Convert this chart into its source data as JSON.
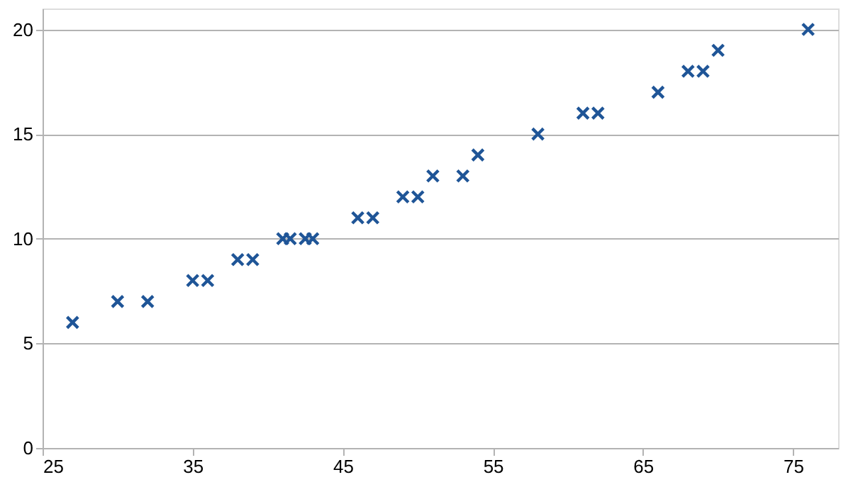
{
  "chart_data": {
    "type": "scatter",
    "marker": "cross",
    "grid": "y",
    "x": [
      27,
      30,
      32,
      35,
      36,
      38,
      39,
      41,
      41.5,
      42.5,
      43,
      46,
      47,
      49,
      50,
      51,
      53,
      54,
      58,
      61,
      62,
      66,
      68,
      69,
      70,
      76
    ],
    "series": [
      {
        "color": "#1f5597",
        "values": [
          6,
          7,
          7,
          8,
          8,
          9,
          9,
          10,
          10,
          10,
          10,
          11,
          11,
          12,
          12,
          13,
          13,
          14,
          15,
          16,
          16,
          17,
          18,
          18,
          19,
          20
        ]
      }
    ],
    "xlim": [
      25,
      78
    ],
    "xticks": [
      25,
      35,
      45,
      55,
      65,
      75
    ],
    "ylim": [
      0,
      21
    ],
    "yticks": [
      0,
      5,
      10,
      15,
      20
    ]
  }
}
